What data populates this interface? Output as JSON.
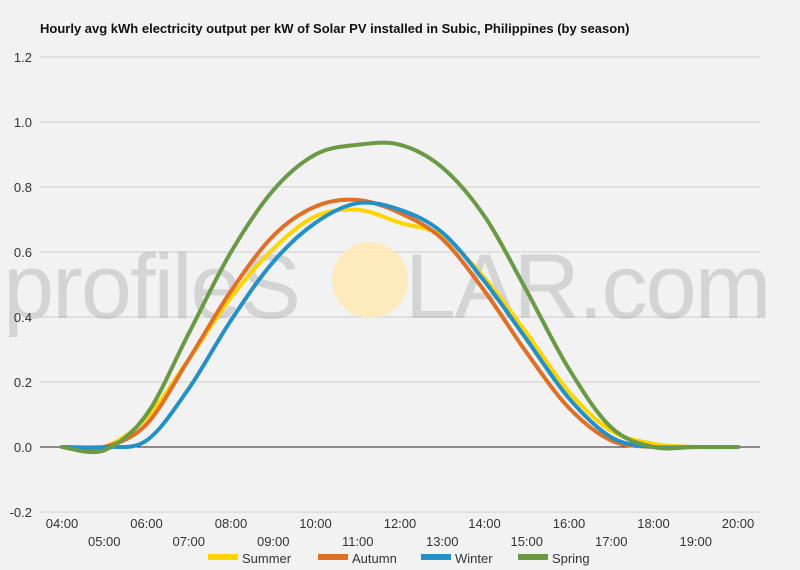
{
  "watermark": {
    "text_left": "profileS",
    "text_right": "LAR.com"
  },
  "colors": {
    "background": "#f2f2f2",
    "grid": "#cfcfcf",
    "zero_line": "#222222",
    "sun": "#ffe9b0"
  },
  "chart_data": {
    "type": "line",
    "title": "Hourly avg kWh electricity output per kW of Solar PV installed in Subic, Philippines (by season)",
    "xlabel": "",
    "ylabel": "",
    "grid": true,
    "legend_position": "bottom",
    "ylim": [
      -0.2,
      1.2
    ],
    "yticks": [
      1.2,
      1.0,
      0.8,
      0.6,
      0.4,
      0.2,
      0.0,
      -0.2
    ],
    "ytick_labels": [
      "1.2",
      "1.0",
      "0.8",
      "0.6",
      "0.4",
      "0.2",
      "0.0",
      "-0.2"
    ],
    "x": [
      4,
      5,
      6,
      7,
      8,
      9,
      10,
      11,
      12,
      13,
      14,
      15,
      16,
      17,
      18,
      19,
      20
    ],
    "xlim": [
      4,
      20
    ],
    "categories": [
      "04:00",
      "05:00",
      "06:00",
      "07:00",
      "08:00",
      "09:00",
      "10:00",
      "11:00",
      "12:00",
      "13:00",
      "14:00",
      "15:00",
      "16:00",
      "17:00",
      "18:00",
      "19:00",
      "20:00"
    ],
    "series": [
      {
        "name": "Summer",
        "color": "#ffd400",
        "values": [
          0.0,
          0.0,
          0.09,
          0.27,
          0.46,
          0.61,
          0.71,
          0.73,
          0.69,
          0.65,
          0.52,
          0.35,
          0.17,
          0.05,
          0.01,
          0.0,
          0.0
        ]
      },
      {
        "name": "Autumn",
        "color": "#e07026",
        "values": [
          0.0,
          0.0,
          0.07,
          0.27,
          0.48,
          0.65,
          0.74,
          0.76,
          0.72,
          0.64,
          0.48,
          0.29,
          0.12,
          0.02,
          0.0,
          0.0,
          0.0
        ]
      },
      {
        "name": "Winter",
        "color": "#2391c7",
        "values": [
          0.0,
          0.0,
          0.02,
          0.18,
          0.39,
          0.57,
          0.69,
          0.75,
          0.73,
          0.66,
          0.51,
          0.33,
          0.15,
          0.03,
          0.0,
          0.0,
          0.0
        ]
      },
      {
        "name": "Spring",
        "color": "#6a9a45",
        "values": [
          0.0,
          -0.01,
          0.1,
          0.35,
          0.6,
          0.79,
          0.9,
          0.93,
          0.93,
          0.86,
          0.71,
          0.48,
          0.24,
          0.06,
          0.0,
          0.0,
          0.0
        ]
      }
    ]
  }
}
